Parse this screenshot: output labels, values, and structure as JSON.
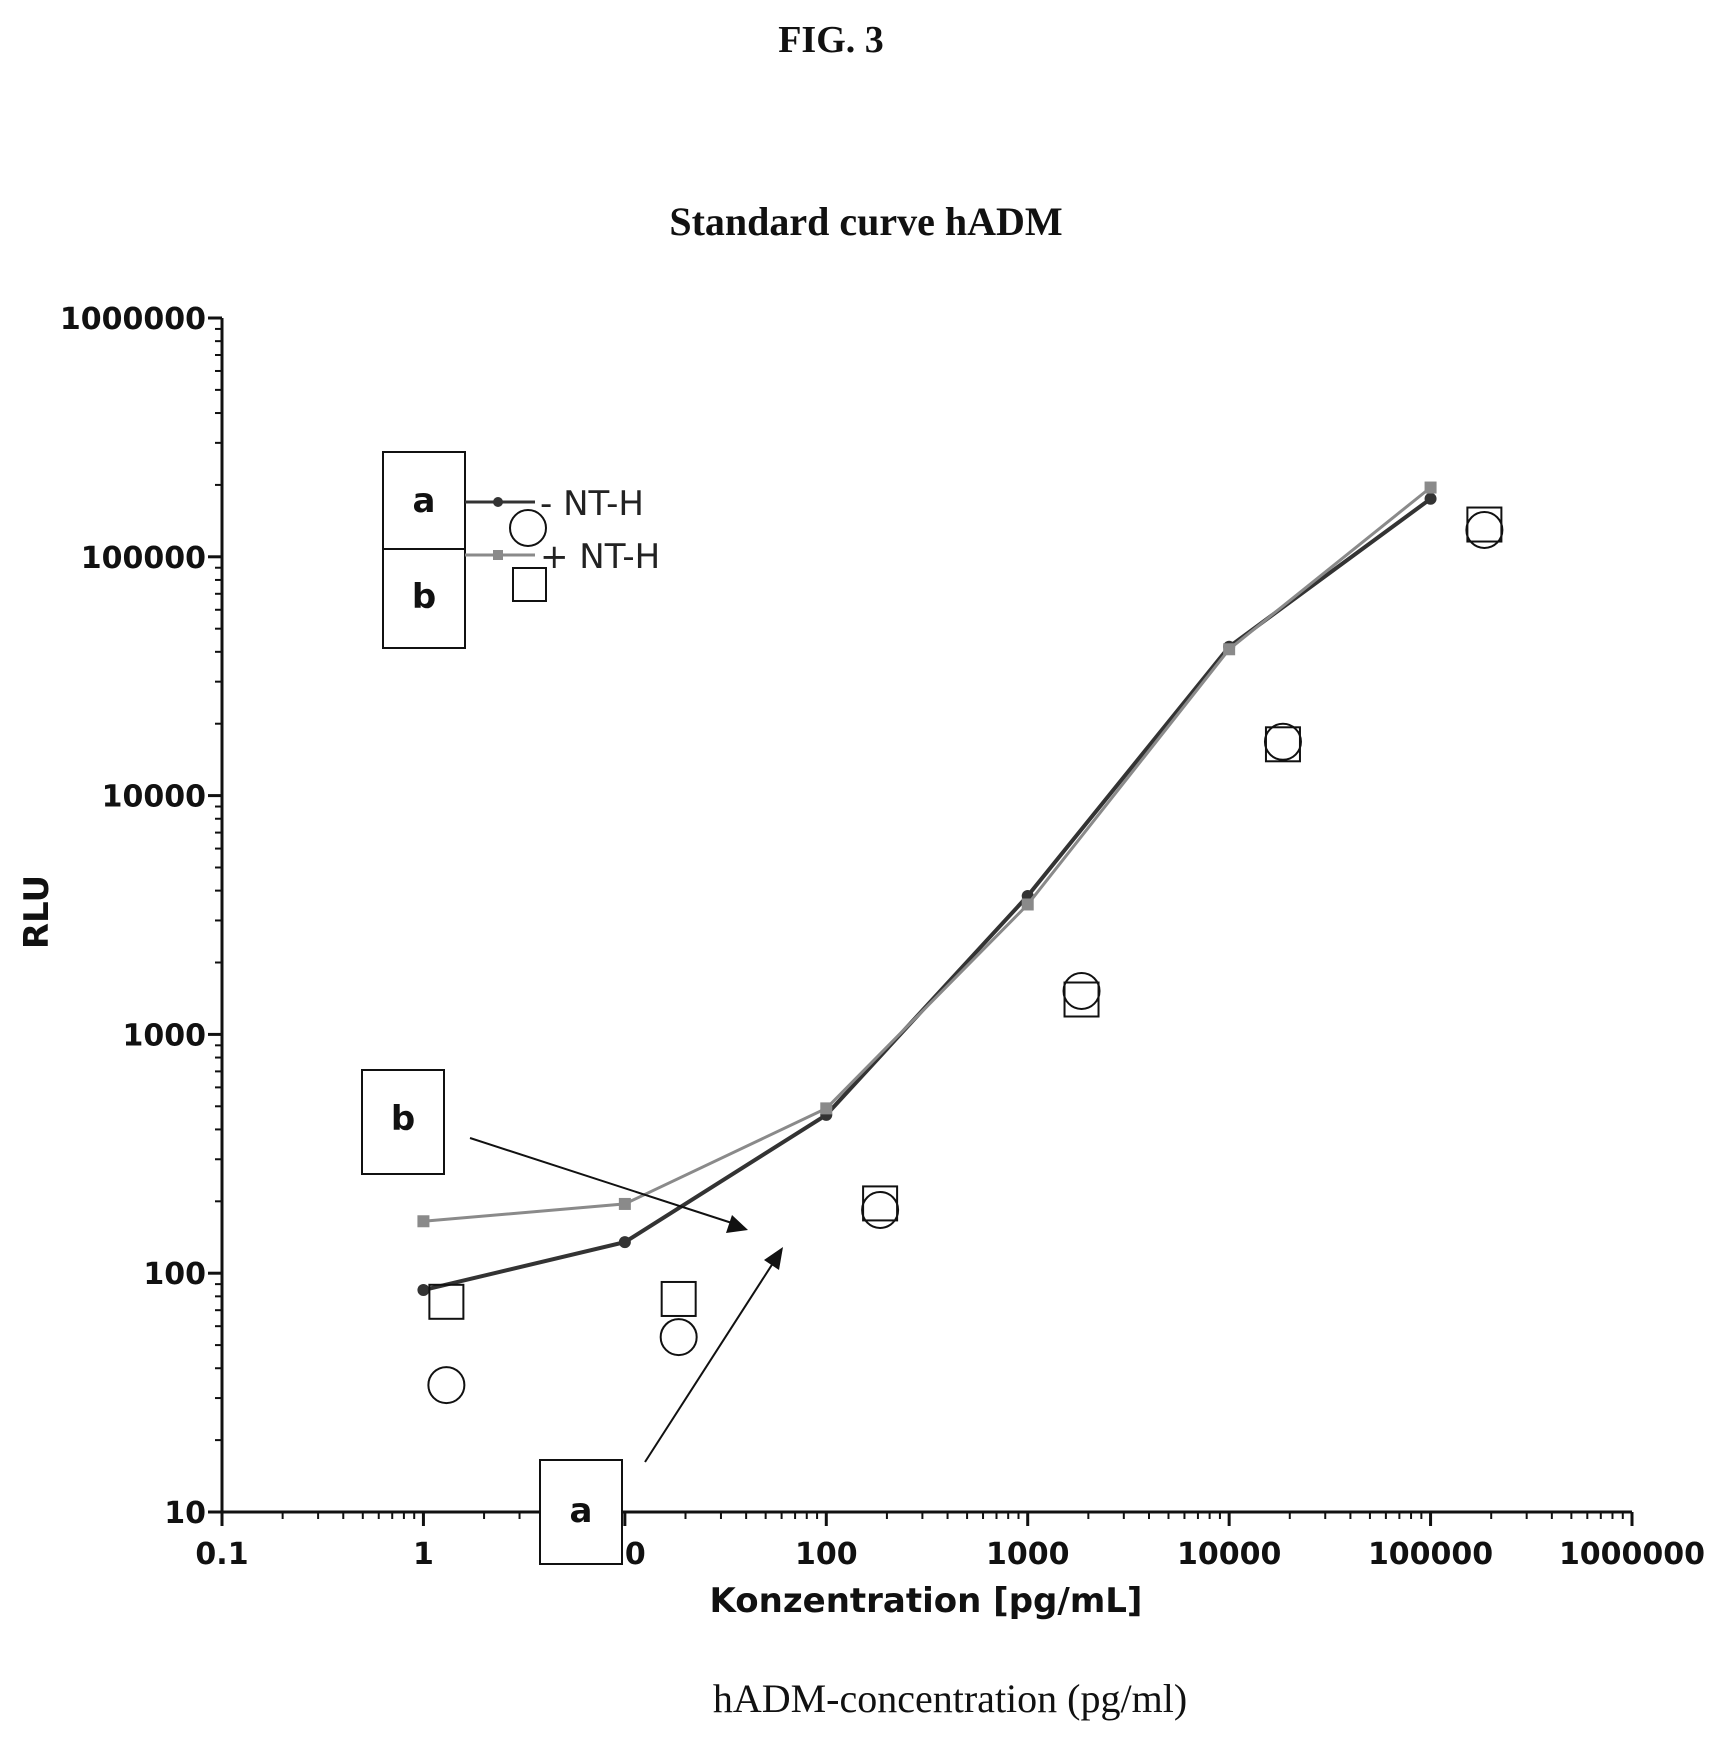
{
  "figure_label": "FIG. 3",
  "bottom_caption": "hADM-concentration (pg/ml)",
  "chart_data": {
    "type": "line",
    "title": "Standard curve hADM",
    "xlabel": "Konzentration [pg/mL]",
    "ylabel": "RLU",
    "x_scale": "log",
    "y_scale": "log",
    "xlim": [
      0.1,
      1000000
    ],
    "ylim": [
      10,
      1000000
    ],
    "x_ticks": [
      0.1,
      1,
      10,
      100,
      1000,
      10000,
      100000,
      1000000
    ],
    "x_tick_labels": [
      "0.1",
      "1",
      "10",
      "100",
      "1000",
      "10000",
      "100000",
      "1000000"
    ],
    "y_ticks": [
      10,
      100,
      1000,
      10000,
      100000,
      1000000
    ],
    "y_tick_labels": [
      "10",
      "100",
      "1000",
      "10000",
      "100000",
      "1000000"
    ],
    "grid": false,
    "legend_position": "top-left",
    "series": [
      {
        "name": "- NT-H",
        "marker": "circle",
        "color": "#333333",
        "x": [
          1,
          10,
          100,
          1000,
          10000,
          100000
        ],
        "y": [
          85,
          135,
          460,
          3800,
          42000,
          175000
        ]
      },
      {
        "name": "+ NT-H",
        "marker": "square",
        "color": "#8a8a8a",
        "x": [
          1,
          10,
          100,
          1000,
          10000,
          100000
        ],
        "y": [
          165,
          195,
          490,
          3500,
          41000,
          195000
        ]
      }
    ],
    "annotations": [
      {
        "label": "a",
        "target_series": "- NT-H"
      },
      {
        "label": "b",
        "target_series": "+ NT-H"
      }
    ],
    "legend_keys": [
      {
        "label": "a",
        "series": "- NT-H"
      },
      {
        "label": "b",
        "series": "+ NT-H"
      }
    ]
  }
}
